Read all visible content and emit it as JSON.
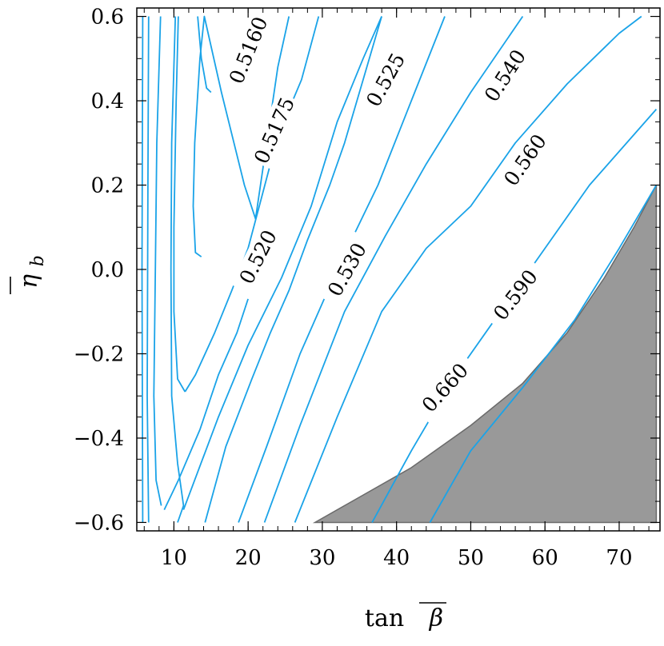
{
  "chart_data": {
    "type": "contour",
    "xlabel_prefix": "tan",
    "xlabel_symbol": "β",
    "ylabel_symbol": "η",
    "ylabel_subscript": "b",
    "xlim": [
      5,
      75.5
    ],
    "ylim": [
      -0.62,
      0.62
    ],
    "x_ticks": [
      10,
      20,
      30,
      40,
      50,
      60,
      70
    ],
    "y_ticks": [
      -0.6,
      -0.4,
      -0.2,
      0.0,
      0.2,
      0.4,
      0.6
    ],
    "x_tick_labels": [
      "10",
      "20",
      "30",
      "40",
      "50",
      "60",
      "70"
    ],
    "y_tick_labels": [
      "−0.6",
      "−0.4",
      "−0.2",
      "0.0",
      "0.2",
      "0.4",
      "0.6"
    ],
    "line_color": "#1aa3e8",
    "excluded_region_color": "#999999",
    "excluded_region": [
      [
        29.0,
        -0.6
      ],
      [
        34.0,
        -0.55
      ],
      [
        42.0,
        -0.47
      ],
      [
        50.0,
        -0.37
      ],
      [
        57.0,
        -0.27
      ],
      [
        63.0,
        -0.15
      ],
      [
        68.0,
        -0.02
      ],
      [
        72.0,
        0.1
      ],
      [
        75.0,
        0.2
      ],
      [
        75.0,
        -0.6
      ]
    ],
    "contours": [
      {
        "label": "",
        "points": [
          [
            5.8,
            -0.6
          ],
          [
            5.7,
            0.0
          ],
          [
            5.8,
            0.6
          ]
        ]
      },
      {
        "label": "",
        "points": [
          [
            6.6,
            -0.6
          ],
          [
            6.4,
            -0.3
          ],
          [
            6.5,
            0.2
          ],
          [
            6.6,
            0.6
          ]
        ]
      },
      {
        "label": "",
        "points": [
          [
            8.3,
            -0.56
          ],
          [
            7.6,
            -0.5
          ],
          [
            7.3,
            -0.3
          ],
          [
            7.5,
            0.0
          ],
          [
            7.7,
            0.3
          ],
          [
            8.2,
            0.6
          ]
        ]
      },
      {
        "label": "",
        "points": [
          [
            10.5,
            -0.6
          ],
          [
            11.3,
            -0.56
          ],
          [
            10.5,
            -0.46
          ],
          [
            9.7,
            -0.3
          ],
          [
            9.6,
            0.0
          ],
          [
            9.7,
            0.3
          ],
          [
            10.2,
            0.6
          ]
        ]
      },
      {
        "label": "",
        "points": [
          [
            11.5,
            -0.29
          ],
          [
            10.5,
            -0.26
          ],
          [
            10.0,
            -0.1
          ],
          [
            10.0,
            0.1
          ],
          [
            10.3,
            0.4
          ],
          [
            10.6,
            0.6
          ]
        ]
      },
      {
        "label": "0.5160",
        "label_pos": [
          20.0,
          0.52
        ],
        "label_angle": -68,
        "points": [
          [
            15.0,
            0.42
          ],
          [
            14.4,
            0.43
          ],
          [
            13.7,
            0.5
          ],
          [
            13.2,
            0.6
          ]
        ]
      },
      {
        "label": "0.5175",
        "label_pos": [
          23.5,
          0.33
        ],
        "label_angle": -66,
        "points": [
          [
            13.7,
            0.03
          ],
          [
            12.9,
            0.04
          ],
          [
            12.6,
            0.15
          ],
          [
            12.8,
            0.3
          ],
          [
            13.5,
            0.5
          ],
          [
            14.1,
            0.6
          ],
          [
            16.4,
            0.42
          ],
          [
            19.5,
            0.2
          ],
          [
            21.0,
            0.12
          ],
          [
            24.0,
            0.48
          ],
          [
            25.5,
            0.6
          ]
        ]
      },
      {
        "label": "0.520",
        "label_pos": [
          21.3,
          0.03
        ],
        "label_angle": -63,
        "points": [
          [
            11.5,
            -0.29
          ],
          [
            12.9,
            -0.25
          ],
          [
            15.5,
            -0.15
          ],
          [
            17.8,
            -0.05
          ],
          [
            20.0,
            0.05
          ],
          [
            21.5,
            0.15
          ],
          [
            23.0,
            0.25
          ],
          [
            24.8,
            0.35
          ],
          [
            27.2,
            0.45
          ],
          [
            29.5,
            0.6
          ]
        ]
      },
      {
        "label": "",
        "points": [
          [
            8.7,
            -0.57
          ],
          [
            10.6,
            -0.5
          ],
          [
            13.5,
            -0.38
          ],
          [
            16.0,
            -0.25
          ],
          [
            18.5,
            -0.15
          ],
          [
            20.0,
            -0.07
          ]
        ]
      },
      {
        "label": "0.530",
        "label_pos": [
          33.3,
          0.0
        ],
        "label_angle": -61,
        "points": [
          [
            14.2,
            -0.6
          ],
          [
            17.0,
            -0.42
          ],
          [
            20.5,
            -0.26
          ],
          [
            23.0,
            -0.15
          ],
          [
            25.5,
            -0.05
          ],
          [
            28.0,
            0.07
          ],
          [
            31.0,
            0.2
          ],
          [
            33.0,
            0.3
          ],
          [
            35.5,
            0.45
          ],
          [
            38.0,
            0.6
          ]
        ]
      },
      {
        "label": "0.525",
        "label_pos": [
          38.5,
          0.45
        ],
        "label_angle": -61,
        "points": [
          [
            11.3,
            -0.57
          ],
          [
            16.0,
            -0.35
          ],
          [
            20.0,
            -0.18
          ],
          [
            24.5,
            -0.02
          ],
          [
            28.5,
            0.15
          ],
          [
            32.0,
            0.35
          ],
          [
            35.5,
            0.5
          ],
          [
            38.0,
            0.6
          ]
        ]
      },
      {
        "label": "",
        "points": [
          [
            18.7,
            -0.6
          ],
          [
            22.5,
            -0.42
          ],
          [
            27.0,
            -0.2
          ],
          [
            32.0,
            0.0
          ],
          [
            37.5,
            0.2
          ],
          [
            42.0,
            0.4
          ],
          [
            46.5,
            0.6
          ]
        ]
      },
      {
        "label": "0.540",
        "label_pos": [
          54.6,
          0.46
        ],
        "label_angle": -57,
        "points": [
          [
            22.2,
            -0.6
          ],
          [
            27.0,
            -0.37
          ],
          [
            33.0,
            -0.1
          ],
          [
            38.5,
            0.08
          ],
          [
            44.0,
            0.25
          ],
          [
            50.0,
            0.42
          ],
          [
            57.0,
            0.6
          ]
        ]
      },
      {
        "label": "0.560",
        "label_pos": [
          57.3,
          0.26
        ],
        "label_angle": -55,
        "points": [
          [
            26.3,
            -0.6
          ],
          [
            32.0,
            -0.35
          ],
          [
            38.0,
            -0.1
          ],
          [
            44.0,
            0.05
          ],
          [
            50.0,
            0.15
          ],
          [
            56.0,
            0.3
          ],
          [
            63.0,
            0.44
          ],
          [
            70.0,
            0.56
          ],
          [
            73.0,
            0.6
          ]
        ]
      },
      {
        "label": "0.590",
        "label_pos": [
          56.0,
          -0.06
        ],
        "label_angle": -52,
        "points": [
          [
            36.7,
            -0.6
          ],
          [
            42.0,
            -0.43
          ],
          [
            48.0,
            -0.25
          ],
          [
            54.0,
            -0.1
          ],
          [
            60.0,
            0.05
          ],
          [
            66.0,
            0.2
          ],
          [
            75.0,
            0.38
          ]
        ]
      },
      {
        "label": "0.660",
        "label_pos": [
          46.5,
          -0.28
        ],
        "label_angle": -48,
        "points": [
          [
            44.5,
            -0.6
          ],
          [
            50.0,
            -0.43
          ],
          [
            57.0,
            -0.28
          ],
          [
            64.0,
            -0.12
          ],
          [
            70.0,
            0.05
          ],
          [
            75.0,
            0.2
          ]
        ]
      }
    ]
  }
}
